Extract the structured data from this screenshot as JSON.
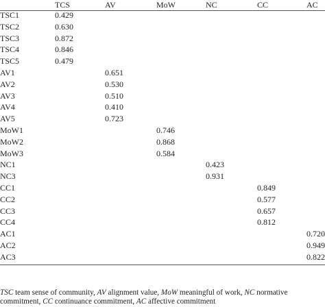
{
  "table": {
    "columns": [
      "TCS",
      "AV",
      "MoW",
      "NC",
      "CC",
      "AC"
    ],
    "groups": [
      [
        {
          "label": "TSC1",
          "value": "0.429"
        },
        {
          "label": "TSC2",
          "value": "0.630"
        },
        {
          "label": "TSC3",
          "value": "0.872"
        },
        {
          "label": "TSC4",
          "value": "0.846"
        },
        {
          "label": "TSC5",
          "value": "0.479"
        }
      ],
      [
        {
          "label": "AV1",
          "value": "0.651"
        },
        {
          "label": "AV2",
          "value": "0.530"
        },
        {
          "label": "AV3",
          "value": "0.510"
        },
        {
          "label": "AV4",
          "value": "0.410"
        },
        {
          "label": "AV5",
          "value": "0.723"
        }
      ],
      [
        {
          "label": "MoW1",
          "value": "0.746"
        },
        {
          "label": "MoW2",
          "value": "0.868"
        },
        {
          "label": "MoW3",
          "value": "0.584"
        }
      ],
      [
        {
          "label": "NC1",
          "value": "0.423"
        },
        {
          "label": "NC3",
          "value": "0.931"
        }
      ],
      [
        {
          "label": "CC1",
          "value": "0.849"
        },
        {
          "label": "CC2",
          "value": "0.577"
        },
        {
          "label": "CC3",
          "value": "0.657"
        },
        {
          "label": "CC4",
          "value": "0.812"
        }
      ],
      [
        {
          "label": "AC1",
          "value": "0.720"
        },
        {
          "label": "AC2",
          "value": "0.949"
        },
        {
          "label": "AC3",
          "value": "0.822"
        }
      ]
    ]
  },
  "footnote": [
    {
      "abbr": "TSC",
      "text": " team sense of community, "
    },
    {
      "abbr": "AV",
      "text": " alignment value, "
    },
    {
      "abbr": "MoW",
      "text": " meaningful of work, "
    },
    {
      "abbr": "NC",
      "text": " normative commitment, "
    },
    {
      "abbr": "CC",
      "text": " continuance commitment, "
    },
    {
      "abbr": "AC",
      "text": " affective commitment"
    }
  ]
}
